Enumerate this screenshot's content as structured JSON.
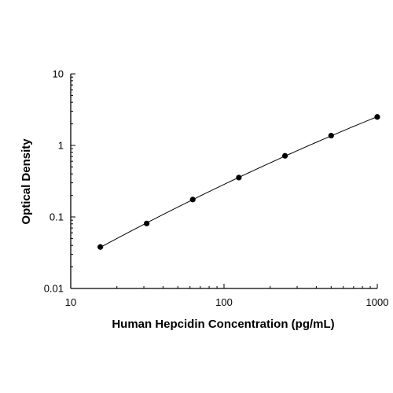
{
  "chart_data": {
    "type": "scatter",
    "title": "",
    "xlabel": "Human Hepcidin Concentration (pg/mL)",
    "ylabel": "Optical Density",
    "x_scale": "log",
    "y_scale": "log",
    "xlim": [
      10,
      1000
    ],
    "ylim": [
      0.01,
      10
    ],
    "x_ticks": [
      {
        "value": 10,
        "label": "10"
      },
      {
        "value": 100,
        "label": "100"
      },
      {
        "value": 1000,
        "label": "1000"
      }
    ],
    "y_ticks": [
      {
        "value": 0.01,
        "label": "0.01"
      },
      {
        "value": 0.1,
        "label": "0.1"
      },
      {
        "value": 1,
        "label": "1"
      },
      {
        "value": 10,
        "label": "10"
      }
    ],
    "grid": false,
    "legend": false,
    "fit_line": true,
    "series": [
      {
        "x": [
          15.6,
          31.3,
          62.5,
          125,
          250,
          500,
          1000
        ],
        "y": [
          0.038,
          0.081,
          0.175,
          0.355,
          0.715,
          1.37,
          2.5
        ]
      }
    ],
    "colors": {
      "points": "#000000",
      "line": "#000000",
      "axes": "#000000"
    }
  }
}
